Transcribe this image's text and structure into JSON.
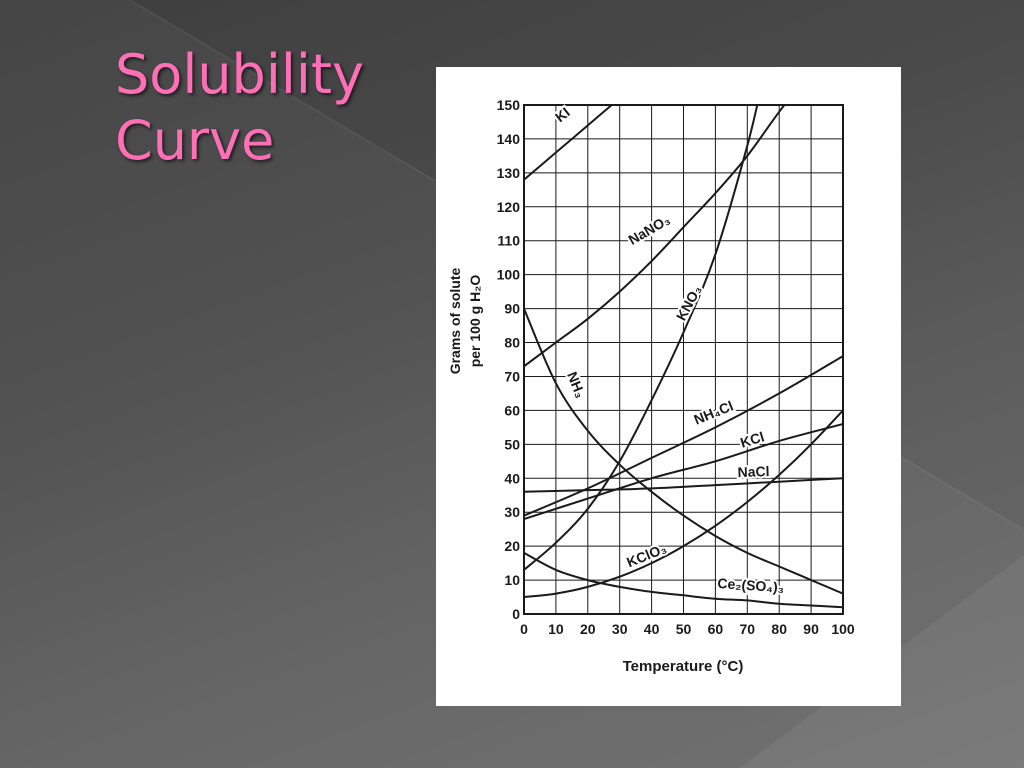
{
  "slide": {
    "title_line1": "Solubility",
    "title_line2": "Curve"
  },
  "colors": {
    "title": "#ff6fb5",
    "chart_background": "#ffffff",
    "ink": "#1a1a1a"
  },
  "chart_data": {
    "type": "line",
    "title": "",
    "xlabel": "Temperature (°C)",
    "ylabel_line1": "Grams of solute",
    "ylabel_line2": "per 100 g H₂O",
    "xlim": [
      0,
      100
    ],
    "ylim": [
      0,
      150
    ],
    "x_ticks": [
      0,
      10,
      20,
      30,
      40,
      50,
      60,
      70,
      80,
      90,
      100
    ],
    "y_ticks": [
      0,
      10,
      20,
      30,
      40,
      50,
      60,
      70,
      80,
      90,
      100,
      110,
      120,
      130,
      140,
      150
    ],
    "grid": true,
    "series": [
      {
        "name": "KI",
        "x": [
          0,
          10,
          20,
          30
        ],
        "y": [
          128,
          136,
          144,
          152
        ],
        "label": "KI"
      },
      {
        "name": "NaNO₃",
        "x": [
          0,
          10,
          20,
          30,
          40,
          50,
          60,
          70,
          80,
          90
        ],
        "y": [
          73,
          80,
          87,
          95,
          104,
          114,
          124,
          135,
          148,
          160
        ],
        "label": "NaNO₃"
      },
      {
        "name": "KNO₃",
        "x": [
          0,
          10,
          20,
          30,
          40,
          50,
          60,
          70,
          75
        ],
        "y": [
          13,
          21,
          31,
          45,
          63,
          83,
          106,
          138,
          158
        ],
        "label": "KNO₃"
      },
      {
        "name": "NH₃",
        "x": [
          0,
          10,
          20,
          30,
          40,
          50,
          60,
          70,
          80,
          90,
          100
        ],
        "y": [
          90,
          68,
          54,
          44,
          36,
          29,
          23,
          18,
          14,
          10,
          6
        ],
        "label": "NH₃"
      },
      {
        "name": "NH₄Cl",
        "x": [
          0,
          20,
          40,
          60,
          80,
          100
        ],
        "y": [
          29,
          37,
          46,
          55,
          65,
          76
        ],
        "label": "NH₄Cl"
      },
      {
        "name": "KCl",
        "x": [
          0,
          20,
          40,
          60,
          80,
          100
        ],
        "y": [
          28,
          34,
          40,
          45,
          51,
          56
        ],
        "label": "KCl"
      },
      {
        "name": "NaCl",
        "x": [
          0,
          20,
          40,
          60,
          80,
          100
        ],
        "y": [
          36,
          36.5,
          37,
          38,
          39,
          40
        ],
        "label": "NaCl"
      },
      {
        "name": "KClO₃",
        "x": [
          0,
          10,
          20,
          30,
          40,
          50,
          60,
          70,
          80,
          90,
          100
        ],
        "y": [
          5,
          6,
          8,
          11,
          15,
          20,
          26,
          33,
          41,
          50,
          60
        ],
        "label": "KClO₃"
      },
      {
        "name": "Ce₂(SO₄)₃",
        "x": [
          0,
          10,
          20,
          30,
          40,
          50,
          60,
          70,
          80,
          90,
          100
        ],
        "y": [
          18,
          13,
          10,
          8,
          6.5,
          5.5,
          4.5,
          4,
          3,
          2.5,
          2
        ],
        "label": "Ce₂(SO₄)₃"
      }
    ]
  }
}
